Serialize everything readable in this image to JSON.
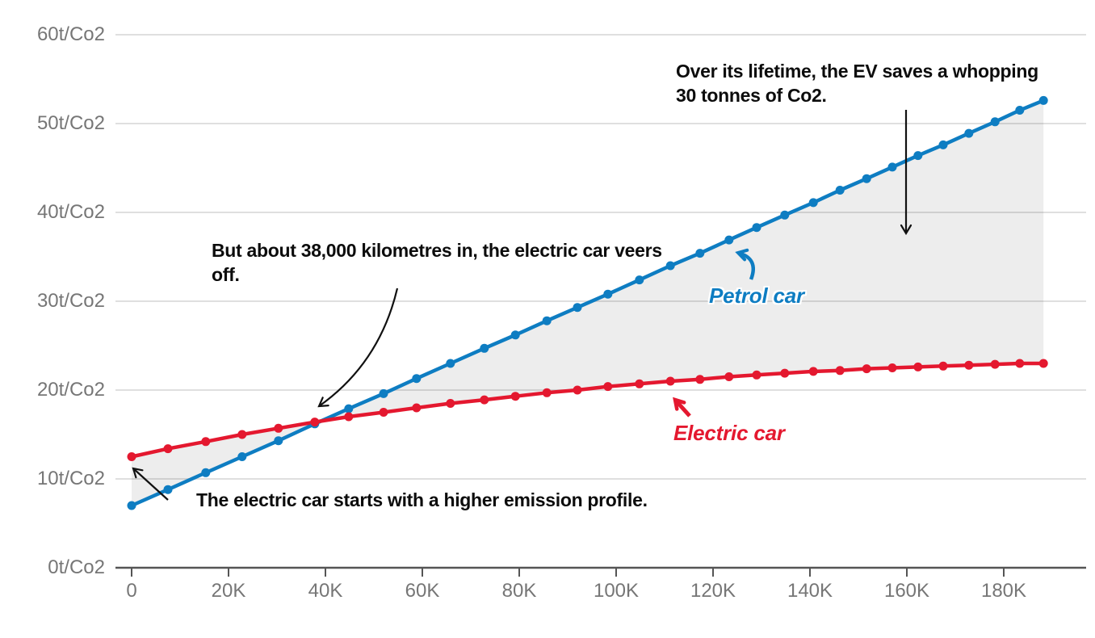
{
  "chart_data": {
    "type": "line",
    "title": "",
    "x_axis": {
      "unit": "km",
      "range_km": [
        0,
        197000
      ],
      "ticks": [
        {
          "km": 0,
          "label": "0"
        },
        {
          "km": 20000,
          "label": "20K"
        },
        {
          "km": 40000,
          "label": "40K"
        },
        {
          "km": 60000,
          "label": "60K"
        },
        {
          "km": 80000,
          "label": "80K"
        },
        {
          "km": 100000,
          "label": "100K"
        },
        {
          "km": 120000,
          "label": "120K"
        },
        {
          "km": 140000,
          "label": "140K"
        },
        {
          "km": 160000,
          "label": "160K"
        },
        {
          "km": 180000,
          "label": "180K"
        }
      ]
    },
    "y_axis": {
      "unit": "t/Co2",
      "range_t": [
        0,
        60
      ],
      "ticks": [
        {
          "t": 0,
          "label": "0t/Co2"
        },
        {
          "t": 10,
          "label": "10t/Co2"
        },
        {
          "t": 20,
          "label": "20t/Co2"
        },
        {
          "t": 30,
          "label": "30t/Co2"
        },
        {
          "t": 40,
          "label": "40t/Co2"
        },
        {
          "t": 50,
          "label": "50t/Co2"
        },
        {
          "t": 60,
          "label": "60t/Co2"
        }
      ]
    },
    "x_km": [
      0,
      7500,
      15300,
      22800,
      30300,
      37800,
      44800,
      52000,
      58800,
      65800,
      72800,
      79200,
      85700,
      92000,
      98300,
      104800,
      111200,
      117300,
      123300,
      129000,
      134800,
      140700,
      146200,
      151700,
      157000,
      162300,
      167500,
      172800,
      178200,
      183300,
      188200
    ],
    "series": [
      {
        "name": "Petrol car",
        "color": "#0e7dc2",
        "values_t": [
          7.0,
          8.8,
          10.7,
          12.5,
          14.3,
          16.2,
          17.9,
          19.6,
          21.3,
          23.0,
          24.7,
          26.2,
          27.8,
          29.3,
          30.8,
          32.4,
          34.0,
          35.4,
          36.9,
          38.3,
          39.7,
          41.1,
          42.5,
          43.8,
          45.1,
          46.4,
          47.6,
          48.9,
          50.2,
          51.5,
          52.6
        ]
      },
      {
        "name": "Electric car",
        "color": "#e4182f",
        "values_t": [
          12.5,
          13.4,
          14.2,
          15.0,
          15.7,
          16.4,
          17.0,
          17.5,
          18.0,
          18.5,
          18.9,
          19.3,
          19.7,
          20.0,
          20.4,
          20.7,
          21.0,
          21.2,
          21.5,
          21.7,
          21.9,
          22.1,
          22.2,
          22.4,
          22.5,
          22.6,
          22.7,
          22.8,
          22.9,
          23.0,
          23.0
        ]
      }
    ],
    "area_between_series": true,
    "grid": "horizontal",
    "legend_position": "inline-labels",
    "crossover_km": 38000,
    "lifetime_saving_t": 30
  },
  "annotations": {
    "lifetime": {
      "lines": [
        "Over its lifetime, the EV saves a whopping",
        "30 tonnes of Co2."
      ]
    },
    "veers": {
      "lines": [
        "But about 38,000 kilometres in, the electric car veers",
        "off."
      ]
    },
    "start": {
      "lines": [
        "The electric car starts with a higher emission profile."
      ]
    }
  },
  "labels": {
    "petrol": "Petrol car",
    "electric": "Electric car"
  },
  "colors": {
    "petrol": "#0e7dc2",
    "electric": "#e4182f",
    "grid": "#dfdfdf",
    "axis": "#555555",
    "tick_label": "#767676",
    "annotation": "#0c0c0c",
    "area": "rgba(0,0,0,0.07)"
  }
}
